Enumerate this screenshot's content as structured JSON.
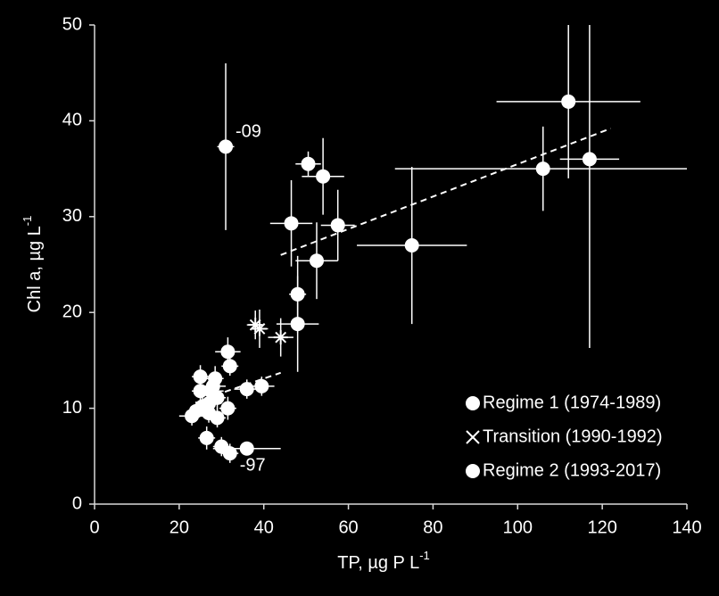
{
  "chart_data": {
    "type": "scatter",
    "x_label": "TP, µg P L",
    "x_label_sup": "-1",
    "y_label": "Chl a, µg L",
    "y_label_sup": "-1",
    "xlim": [
      0,
      140
    ],
    "xticks": [
      0,
      20,
      40,
      60,
      80,
      100,
      120,
      140
    ],
    "ylim": [
      0,
      50
    ],
    "yticks": [
      0,
      10,
      20,
      30,
      40,
      50
    ],
    "legend": "lower right",
    "series": [
      {
        "name": "Regime 1 (1974-1989)",
        "color": "#ffffff",
        "marker": "circle",
        "x": [
          112,
          106,
          117,
          75,
          50.5,
          54,
          46.5,
          57.5,
          52.5,
          48,
          48
        ],
        "values": [
          42,
          35,
          36,
          27,
          35.5,
          34.2,
          29.3,
          29.1,
          25.4,
          21.9,
          18.8
        ],
        "x_err": [
          17,
          35,
          7,
          13,
          3,
          5,
          5,
          4,
          5,
          2,
          5
        ],
        "y_err": [
          8,
          4.4,
          19.7,
          8.2,
          1.3,
          4,
          4.5,
          3.7,
          4,
          4,
          5
        ]
      },
      {
        "name": "Transition (1990-1992)",
        "color": "#ffffff",
        "marker": "x",
        "x": [
          38,
          39,
          44
        ],
        "values": [
          18.7,
          18.3,
          17.4
        ],
        "x_err": [
          2,
          2,
          3
        ],
        "y_err": [
          1.5,
          2,
          2
        ]
      },
      {
        "name": "Regime 2 (1993-2017)",
        "color": "#ffffff",
        "marker": "circle",
        "x": [
          31,
          31.5,
          32,
          25,
          28.5,
          28,
          25,
          27.5,
          29,
          27,
          36,
          39.5,
          31.5,
          24,
          23,
          29,
          26.5,
          30,
          32,
          36,
          27,
          25.5
        ],
        "values": [
          37.3,
          15.9,
          14.4,
          13.3,
          13.1,
          12.3,
          11.8,
          11.8,
          11.1,
          10.5,
          12,
          12.3,
          10,
          9.7,
          9.2,
          9,
          6.9,
          6,
          5.3,
          5.8,
          9.5,
          10.2
        ],
        "x_err": [
          2,
          3,
          2,
          2,
          2,
          3,
          2,
          3,
          2,
          3,
          3,
          3,
          2,
          2,
          3,
          2,
          2,
          2,
          2,
          8,
          3,
          2
        ],
        "y_err": [
          8.7,
          1.5,
          1,
          1.2,
          1.3,
          1,
          1.5,
          1,
          1.2,
          1,
          1,
          1,
          1.2,
          1,
          1,
          1,
          1.2,
          1,
          1,
          0.3,
          1,
          1
        ],
        "labels": [
          "-09",
          null,
          null,
          null,
          null,
          null,
          null,
          null,
          null,
          null,
          null,
          null,
          null,
          null,
          null,
          null,
          null,
          null,
          "-97",
          null,
          null,
          null
        ]
      }
    ],
    "trendlines": [
      {
        "x": [
          44,
          122
        ],
        "y": [
          26,
          39.2
        ]
      },
      {
        "x": [
          26,
          44
        ],
        "y": [
          11,
          13.7
        ]
      }
    ]
  }
}
